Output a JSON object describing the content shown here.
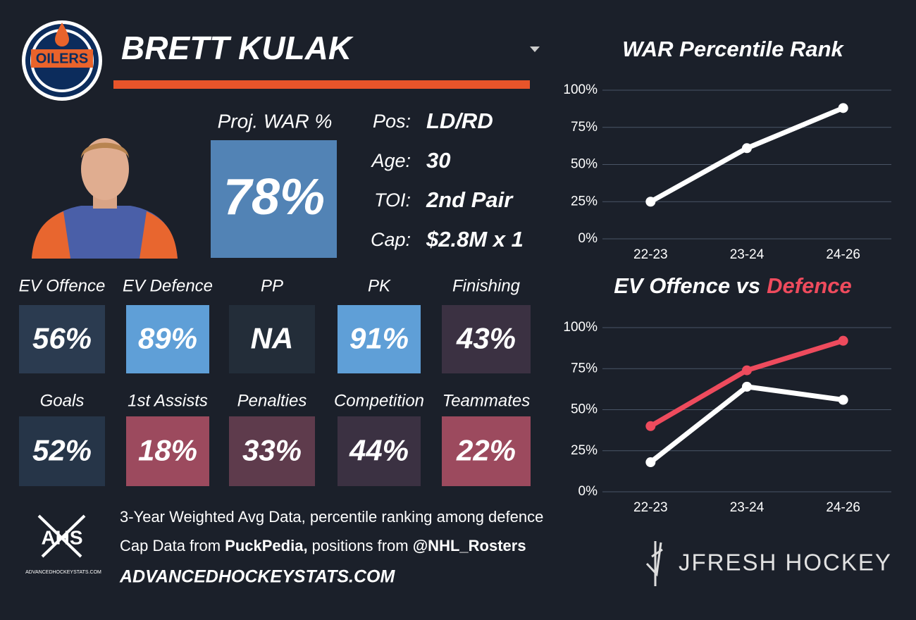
{
  "header": {
    "name": "BRETT KULAK",
    "logo_text": "OILERS"
  },
  "projection": {
    "label": "Proj. WAR %",
    "value": "78%",
    "color": "#5283b5"
  },
  "info": [
    {
      "label": "Pos:",
      "value": "LD/RD"
    },
    {
      "label": "Age:",
      "value": "30"
    },
    {
      "label": "TOI:",
      "value": "2nd Pair"
    },
    {
      "label": "Cap:",
      "value": "$2.8M x 1"
    }
  ],
  "tiles": [
    {
      "label": "EV Offence",
      "value": "56%",
      "color": "#2b3b50"
    },
    {
      "label": "EV Defence",
      "value": "89%",
      "color": "#5f9fd7"
    },
    {
      "label": "PP",
      "value": "NA",
      "color": "#232d39"
    },
    {
      "label": "PK",
      "value": "91%",
      "color": "#5f9fd7"
    },
    {
      "label": "Finishing",
      "value": "43%",
      "color": "#3b3142"
    },
    {
      "label": "Goals",
      "value": "52%",
      "color": "#263548"
    },
    {
      "label": "1st Assists",
      "value": "18%",
      "color": "#9c4a5e"
    },
    {
      "label": "Penalties",
      "value": "33%",
      "color": "#5e3b4c"
    },
    {
      "label": "Competition",
      "value": "44%",
      "color": "#3b3142"
    },
    {
      "label": "Teammates",
      "value": "22%",
      "color": "#9c4a5e"
    }
  ],
  "footer": {
    "logo_text": "AHS",
    "logo_subtext": "ADVANCEDHOCKEYSTATS.COM",
    "line1": "3-Year Weighted Avg Data, percentile ranking among defence",
    "line2": [
      "Cap Data from ",
      "PuckPedia,",
      " positions from ",
      "@NHL_Rosters"
    ],
    "site": "ADVANCEDHOCKEYSTATS.COM",
    "brand": "JFRESH HOCKEY"
  },
  "chart_data": [
    {
      "type": "line",
      "title": "WAR Percentile Rank",
      "categories": [
        "22-23",
        "23-24",
        "24-26"
      ],
      "series": [
        {
          "color": "#ffffff",
          "values": [
            25,
            61,
            88
          ]
        }
      ],
      "ylim": [
        0,
        100
      ],
      "yticks": [
        {
          "value": 0,
          "label": "0%"
        },
        {
          "value": 25,
          "label": "25%"
        },
        {
          "value": 50,
          "label": "50%"
        },
        {
          "value": 75,
          "label": "75%"
        },
        {
          "value": 100,
          "label": "100%"
        }
      ],
      "grid": true
    },
    {
      "type": "line",
      "title": "EV Offence vs",
      "title_highlight": "Defence",
      "title_highlight_color": "#ee4b5d",
      "categories": [
        "22-23",
        "23-24",
        "24-26"
      ],
      "series": [
        {
          "color": "#ffffff",
          "values": [
            18,
            64,
            56
          ]
        },
        {
          "color": "#ee4b5d",
          "values": [
            40,
            74,
            92
          ]
        }
      ],
      "ylim": [
        0,
        100
      ],
      "yticks": [
        {
          "value": 0,
          "label": "0%"
        },
        {
          "value": 25,
          "label": "25%"
        },
        {
          "value": 50,
          "label": "50%"
        },
        {
          "value": 75,
          "label": "75%"
        },
        {
          "value": 100,
          "label": "100%"
        }
      ],
      "grid": true
    }
  ]
}
